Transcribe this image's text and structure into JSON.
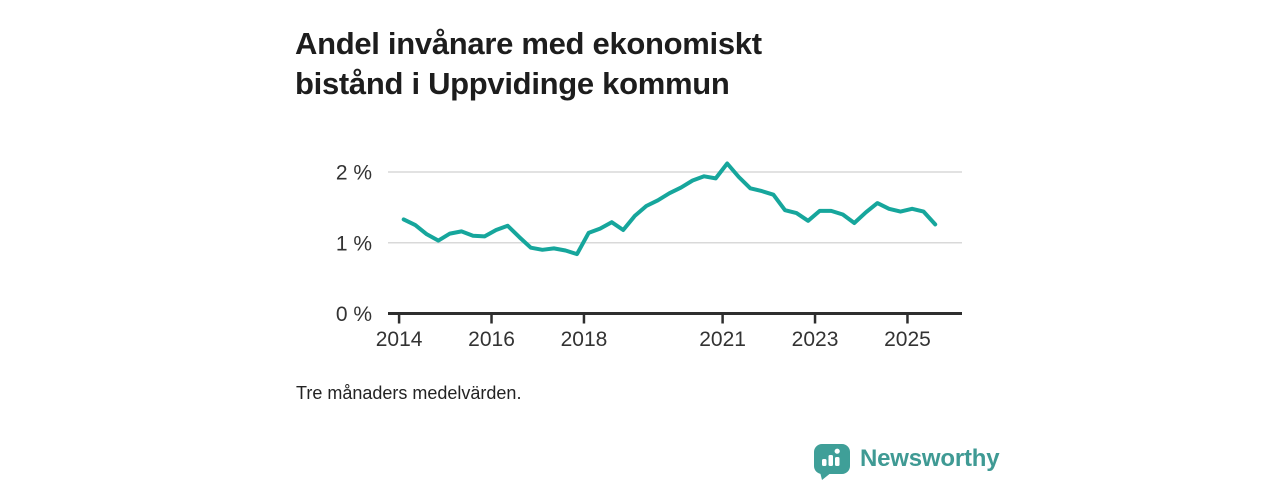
{
  "page": {
    "title": "Andel invånare med ekonomiskt bistånd i Uppvidinge kommun",
    "footnote": "Tre månaders medelvärden.",
    "background_color": "#ffffff"
  },
  "branding": {
    "wordmark": "Newsworthy",
    "icon": "speech-bubble-bar-chart-icon",
    "icon_color": "#3f9f98",
    "wordmark_color": "#3f9a94"
  },
  "chart_data": {
    "type": "line",
    "title": "Andel invånare med ekonomiskt bistånd i Uppvidinge kommun",
    "subtitle": "",
    "xlabel": "",
    "ylabel": "",
    "unit": "%",
    "note": "Tre månaders medelvärden.",
    "grid": true,
    "legend_position": "none",
    "line_color": "#16a69c",
    "grid_color": "#d9d9d9",
    "axis_color": "#2e2e2e",
    "tick_label_color": "#333333",
    "xlim": [
      2013.76,
      2026.18
    ],
    "ylim": [
      0,
      2.3
    ],
    "yticks": [
      {
        "value": 0,
        "label": "0 %"
      },
      {
        "value": 1,
        "label": "1 %"
      },
      {
        "value": 2,
        "label": "2 %"
      }
    ],
    "xticks": [
      {
        "value": 2014,
        "label": "2014"
      },
      {
        "value": 2016,
        "label": "2016"
      },
      {
        "value": 2018,
        "label": "2018"
      },
      {
        "value": 2021,
        "label": "2021"
      },
      {
        "value": 2023,
        "label": "2023"
      },
      {
        "value": 2025,
        "label": "2025"
      }
    ],
    "series": [
      {
        "name": "Andel invånare med ekonomiskt bistånd",
        "x": [
          2014.1,
          2014.35,
          2014.6,
          2014.85,
          2015.1,
          2015.35,
          2015.6,
          2015.85,
          2016.1,
          2016.35,
          2016.6,
          2016.85,
          2017.1,
          2017.35,
          2017.6,
          2017.85,
          2018.1,
          2018.35,
          2018.6,
          2018.85,
          2019.1,
          2019.35,
          2019.6,
          2019.85,
          2020.1,
          2020.35,
          2020.6,
          2020.85,
          2021.1,
          2021.35,
          2021.6,
          2021.85,
          2022.1,
          2022.35,
          2022.6,
          2022.85,
          2023.1,
          2023.35,
          2023.6,
          2023.85,
          2024.1,
          2024.35,
          2024.6,
          2024.85,
          2025.1,
          2025.35,
          2025.6
        ],
        "values": [
          1.33,
          1.25,
          1.12,
          1.03,
          1.13,
          1.16,
          1.1,
          1.09,
          1.18,
          1.24,
          1.08,
          0.93,
          0.9,
          0.92,
          0.89,
          0.84,
          1.14,
          1.2,
          1.29,
          1.18,
          1.38,
          1.52,
          1.6,
          1.7,
          1.78,
          1.88,
          1.94,
          1.91,
          2.12,
          1.93,
          1.77,
          1.73,
          1.68,
          1.46,
          1.42,
          1.31,
          1.45,
          1.45,
          1.4,
          1.28,
          1.43,
          1.56,
          1.48,
          1.44,
          1.48,
          1.44,
          1.26
        ]
      }
    ]
  }
}
